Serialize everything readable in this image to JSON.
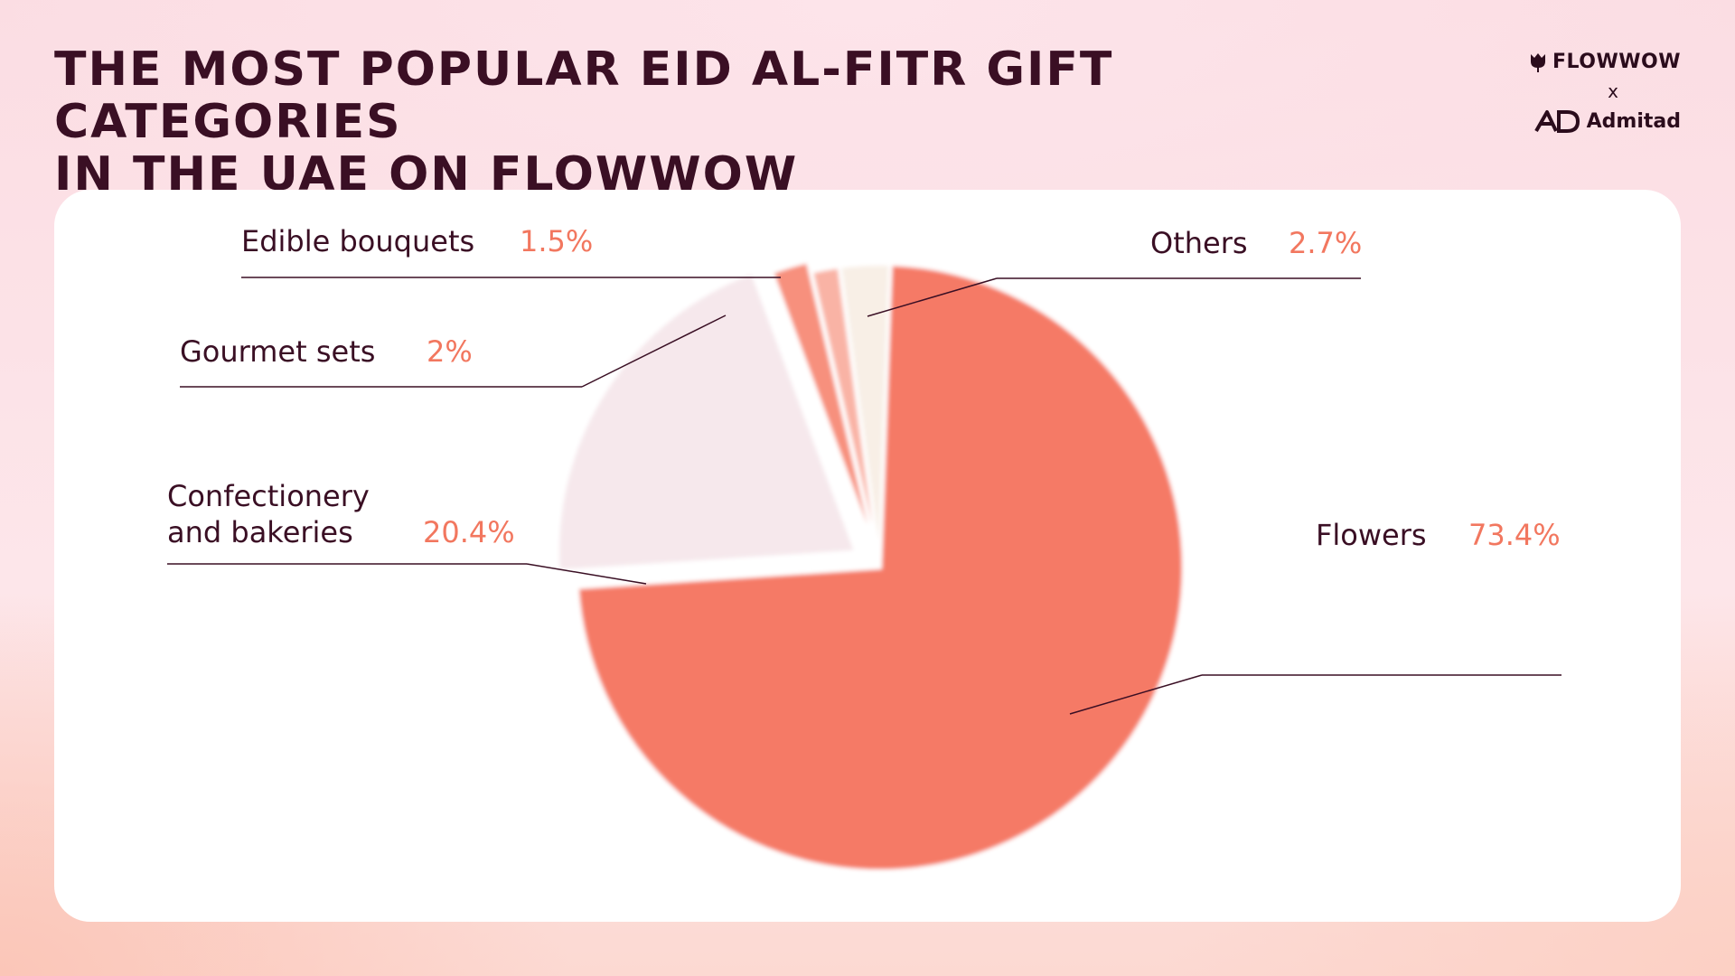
{
  "title": {
    "line1": "THE MOST POPULAR EID AL-FITR GIFT CATEGORIES",
    "line2": "IN THE UAE ON FLOWWOW"
  },
  "logos": {
    "flowwow": "FLOWWOW",
    "separator": "x",
    "admitad": "Admitad",
    "flowwow_icon": "tulip-icon",
    "admitad_icon": "ad-monogram-icon"
  },
  "colors": {
    "flowers": "#f57a66",
    "confectionery": "#f6e8ec",
    "gourmet": "#f7907d",
    "edible": "#f9b3a5",
    "others": "#f8efe6",
    "text": "#3a0f24",
    "percent": "#f2775f"
  },
  "chart_data": {
    "type": "pie",
    "title": "THE MOST POPULAR EID AL-FITR GIFT CATEGORIES IN THE UAE ON FLOWWOW",
    "slices": [
      {
        "label": "Flowers",
        "value": 73.4,
        "display": "73.4%"
      },
      {
        "label": "Confectionery and bakeries",
        "label_lines": [
          "Confectionery",
          "and bakeries"
        ],
        "value": 20.4,
        "display": "20.4%"
      },
      {
        "label": "Gourmet sets",
        "value": 2,
        "display": "2%"
      },
      {
        "label": "Edible bouquets",
        "value": 1.5,
        "display": "1.5%"
      },
      {
        "label": "Others",
        "value": 2.7,
        "display": "2.7%"
      }
    ]
  }
}
